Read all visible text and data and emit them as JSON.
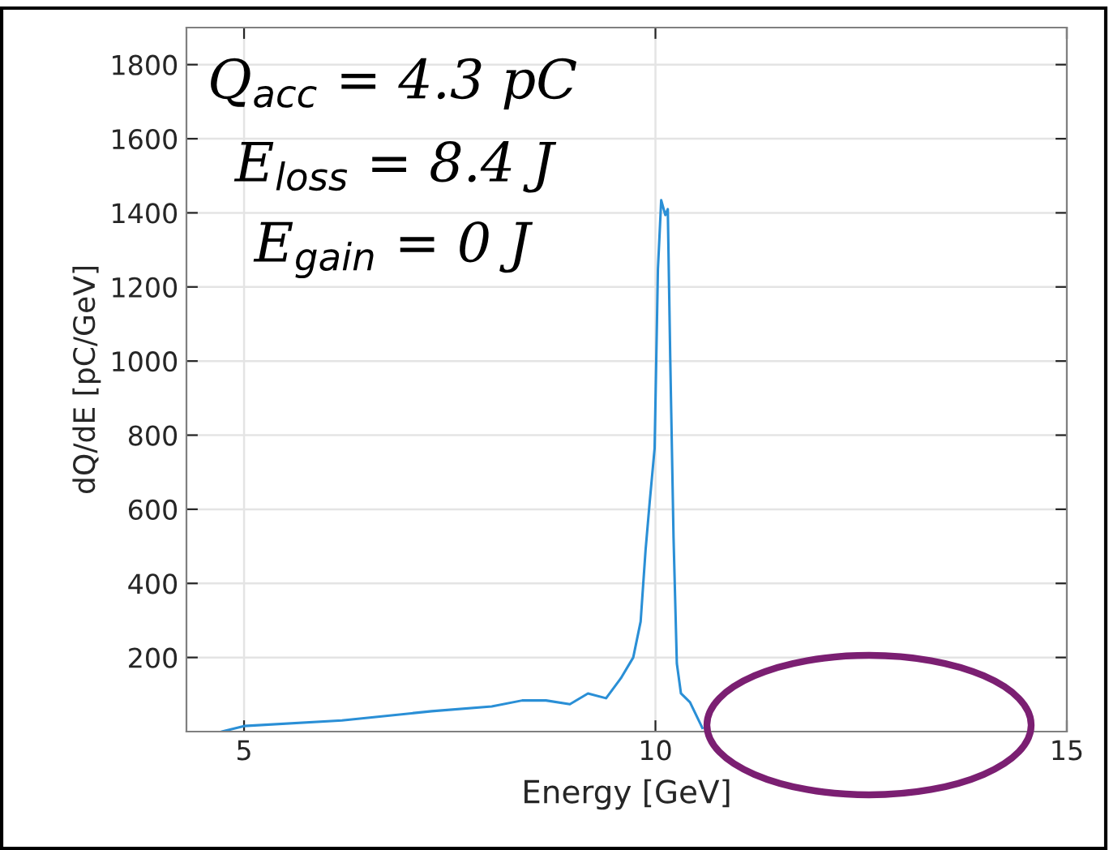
{
  "chart_data": {
    "type": "line",
    "xlabel": "Energy [GeV]",
    "ylabel": "dQ/dE [pC/GeV]",
    "x": [
      4.73,
      5.0,
      6.19,
      7.28,
      8.01,
      8.38,
      8.67,
      8.96,
      9.18,
      9.4,
      9.58,
      9.73,
      9.82,
      9.88,
      9.93,
      9.99,
      10.03,
      10.07,
      10.12,
      10.15,
      10.18,
      10.22,
      10.26,
      10.31,
      10.42,
      10.57
    ],
    "series": [
      {
        "color": "#2a8fd6",
        "values": [
          0,
          15,
          30,
          55,
          68,
          84,
          84,
          74,
          103,
          90,
          144,
          200,
          297,
          490,
          619,
          765,
          1248,
          1434,
          1394,
          1410,
          1006,
          523,
          184,
          103,
          79,
          10
        ]
      }
    ],
    "xlim": [
      4.3,
      15
    ],
    "xticks": [
      5,
      10,
      15
    ],
    "ylim": [
      0,
      1900
    ],
    "yticks": [
      200,
      400,
      600,
      800,
      1000,
      1200,
      1400,
      1600,
      1800
    ],
    "grid": true,
    "marker": "none",
    "line_style": "solid",
    "annotations": [
      "Q$_{acc}$ = 4.3 pC",
      "E$_{loss}$ = 8.4 J",
      "E$_{gain}$ = 0 J"
    ]
  }
}
